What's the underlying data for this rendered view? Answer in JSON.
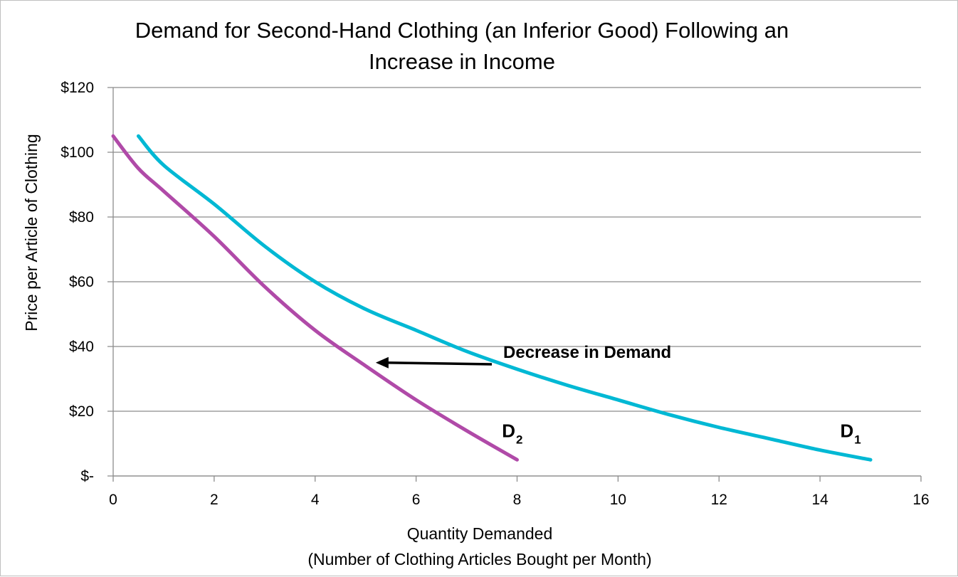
{
  "chart_data": {
    "type": "line",
    "title": [
      "Demand for Second-Hand Clothing (an Inferior Good) Following an",
      "Increase in Income"
    ],
    "xlabel": [
      "Quantity Demanded",
      "(Number of Clothing Articles Bought per Month)"
    ],
    "ylabel": "Price per Article of Clothing",
    "xlim": [
      0,
      16
    ],
    "ylim": [
      0,
      120
    ],
    "x_ticks": [
      0,
      2,
      4,
      6,
      8,
      10,
      12,
      14,
      16
    ],
    "x_tick_labels": [
      "0",
      "2",
      "4",
      "6",
      "8",
      "10",
      "12",
      "14",
      "16"
    ],
    "y_ticks": [
      0,
      20,
      40,
      60,
      80,
      100,
      120
    ],
    "y_tick_labels": [
      "$-",
      "$20",
      "$40",
      "$60",
      "$80",
      "$100",
      "$120"
    ],
    "grid": true,
    "series": [
      {
        "name": "D1",
        "label_main": "D",
        "label_sub": "1",
        "color": "#00b8d4",
        "points": [
          [
            0.5,
            105
          ],
          [
            1,
            96
          ],
          [
            2,
            84
          ],
          [
            3,
            71
          ],
          [
            4,
            60
          ],
          [
            5,
            51.5
          ],
          [
            6,
            45
          ],
          [
            7,
            38.5
          ],
          [
            8,
            33
          ],
          [
            9,
            28
          ],
          [
            10,
            23.5
          ],
          [
            11,
            19
          ],
          [
            12,
            15
          ],
          [
            13,
            11.5
          ],
          [
            14,
            8
          ],
          [
            15,
            5
          ]
        ]
      },
      {
        "name": "D2",
        "label_main": "D",
        "label_sub": "2",
        "color": "#b04aa8",
        "points": [
          [
            0,
            105
          ],
          [
            0.5,
            95
          ],
          [
            1,
            88
          ],
          [
            2,
            74
          ],
          [
            3,
            58.5
          ],
          [
            4,
            45
          ],
          [
            5,
            34
          ],
          [
            6,
            23.5
          ],
          [
            7,
            14
          ],
          [
            8,
            5
          ]
        ]
      }
    ],
    "annotations": [
      {
        "text": "Decrease in Demand",
        "arrow_from": [
          7.5,
          34.5
        ],
        "arrow_to": [
          5.2,
          35
        ]
      }
    ],
    "label_anchors": {
      "D1": [
        14.4,
        12
      ],
      "D2": [
        7.7,
        12
      ]
    }
  }
}
